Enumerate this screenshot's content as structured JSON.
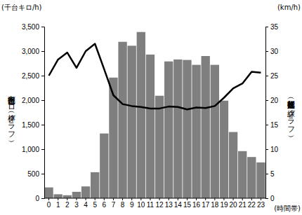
{
  "chart_data": {
    "type": "bar",
    "ylabel": "区部走行台キロ（棒グラフ）",
    "y2label": "区部走行速度（折れ線グラフ）",
    "y_unit": "(千台キロ/h)",
    "y2_unit": "(km/h)",
    "xlabel": "(時間帯)",
    "categories": [
      "0",
      "1",
      "2",
      "3",
      "4",
      "5",
      "6",
      "7",
      "8",
      "9",
      "10",
      "11",
      "12",
      "13",
      "14",
      "15",
      "16",
      "17",
      "18",
      "19",
      "20",
      "21",
      "22",
      "23"
    ],
    "series": [
      {
        "type": "bar",
        "color": "#7f7f7f",
        "values": [
          220,
          80,
          60,
          130,
          240,
          530,
          1320,
          2460,
          3190,
          3110,
          3390,
          2930,
          2090,
          2790,
          2830,
          2820,
          2720,
          2900,
          2720,
          1990,
          1350,
          960,
          840,
          730
        ]
      },
      {
        "type": "line",
        "color": "#000000",
        "axis": "y2",
        "values": [
          25,
          28.3,
          29.7,
          26.6,
          30,
          31.5,
          26.3,
          21,
          19.2,
          18.8,
          18.6,
          18.3,
          18.3,
          18.7,
          18.6,
          18.1,
          18.5,
          18.4,
          18.8,
          20.5,
          22.4,
          23.4,
          25.8,
          25.6
        ]
      }
    ],
    "ylim": [
      0,
      3500
    ],
    "yticks": [
      0,
      500,
      {
        "value": 1000,
        "label": "1,000"
      },
      {
        "value": 1500,
        "label": "1,500"
      },
      {
        "value": 2000,
        "label": "2,000"
      },
      {
        "value": 2500,
        "label": "2,500"
      },
      {
        "value": 3000,
        "label": "3,000"
      },
      {
        "value": 3500,
        "label": "3,500"
      }
    ],
    "y2lim": [
      0,
      35
    ],
    "y2ticks": [
      0,
      5,
      10,
      15,
      20,
      25,
      30,
      35
    ],
    "grid": false
  }
}
